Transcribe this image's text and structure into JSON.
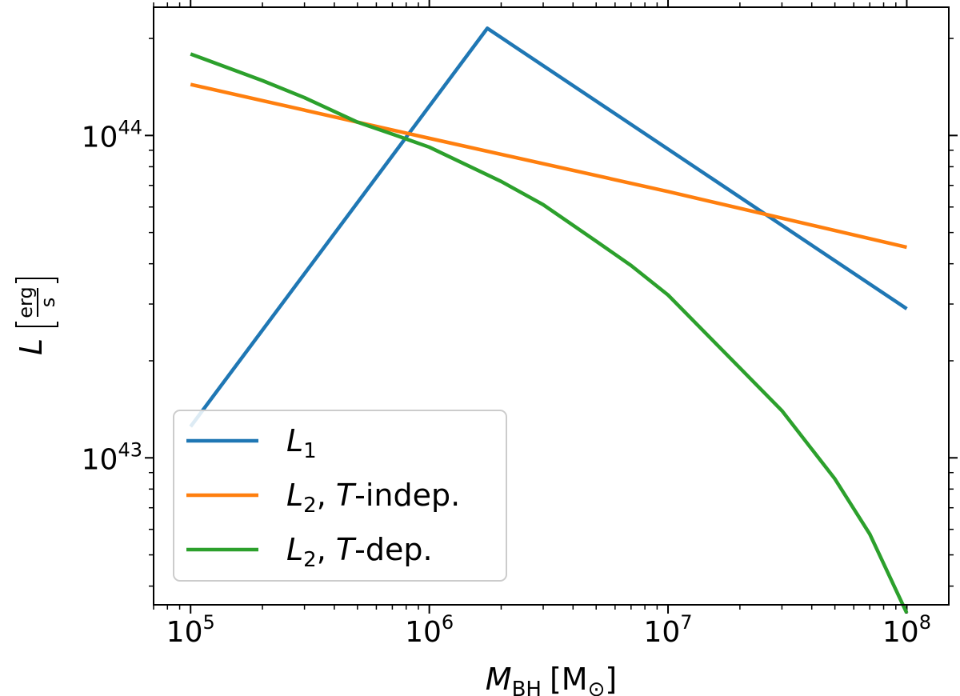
{
  "chart_data": {
    "type": "line",
    "x_scale": "log",
    "y_scale": "log",
    "xlim": [
      70000,
      150000000
    ],
    "ylim": [
      3500000000000000000000000000000000000000000,
      250000000000000000000000000000000000000000000
    ],
    "xlabel": {
      "symbol": "M",
      "subscript": "BH",
      "unit": "[M",
      "unit_sub": "⊙",
      "unit_close": "]"
    },
    "ylabel": {
      "symbol": "L",
      "unit_num": "erg",
      "unit_den": "s"
    },
    "x_ticks": [
      {
        "base": "10",
        "exp": "5",
        "value": 100000
      },
      {
        "base": "10",
        "exp": "6",
        "value": 1000000
      },
      {
        "base": "10",
        "exp": "7",
        "value": 10000000
      },
      {
        "base": "10",
        "exp": "8",
        "value": 100000000
      }
    ],
    "y_ticks": [
      {
        "base": "10",
        "exp": "43",
        "value": 10000000000000000000000000000000000000000000
      },
      {
        "base": "10",
        "exp": "44",
        "value": 100000000000000000000000000000000000000000000
      }
    ],
    "legend_position": "lower-left",
    "series": [
      {
        "name": "L1",
        "label_main": "L",
        "label_sub": "1",
        "label_rest": "",
        "label_italic": "",
        "label_after": "",
        "color": "#1f77b4",
        "x": [
          100000,
          1750000,
          100000000
        ],
        "y": [
          12500000000000000000000000000000000000000000,
          215000000000000000000000000000000000000000000,
          29000000000000000000000000000000000000000000
        ]
      },
      {
        "name": "L2, T-indep.",
        "label_main": "L",
        "label_sub": "2",
        "label_rest": ", ",
        "label_italic": "T",
        "label_after": "-indep.",
        "color": "#ff7f0e",
        "x": [
          100000,
          1000000,
          10000000,
          100000000
        ],
        "y": [
          144000000000000000000000000000000000000000000,
          98000000000000000000000000000000000000000000,
          67000000000000000000000000000000000000000000,
          45000000000000000000000000000000000000000000
        ]
      },
      {
        "name": "L2, T-dep.",
        "label_main": "L",
        "label_sub": "2",
        "label_rest": ", ",
        "label_italic": "T",
        "label_after": "-dep.",
        "color": "#2ca02c",
        "x": [
          100000,
          200000,
          300000,
          500000,
          700000,
          1000000,
          2000000,
          3000000,
          5000000,
          7000000,
          10000000,
          20000000,
          30000000,
          50000000,
          70000000,
          100000000
        ],
        "y": [
          179000000000000000000000000000000000000000000,
          148000000000000000000000000000000000000000000,
          131000000000000000000000000000000000000000000,
          110000000000000000000000000000000000000000000,
          101000000000000000000000000000000000000000000,
          92000000000000000000000000000000000000000000,
          72000000000000000000000000000000000000000000,
          61000000000000000000000000000000000000000000,
          47000000000000000000000000000000000000000000,
          39500000000000000000000000000000000000000000,
          32000000000000000000000000000000000000000000,
          19000000000000000000000000000000000000000000,
          14000000000000000000000000000000000000000000,
          8600000000000000000000000000000000000000000,
          5800000000000000000000000000000000000000000,
          3300000000000000000000000000000000000000000
        ]
      }
    ]
  }
}
